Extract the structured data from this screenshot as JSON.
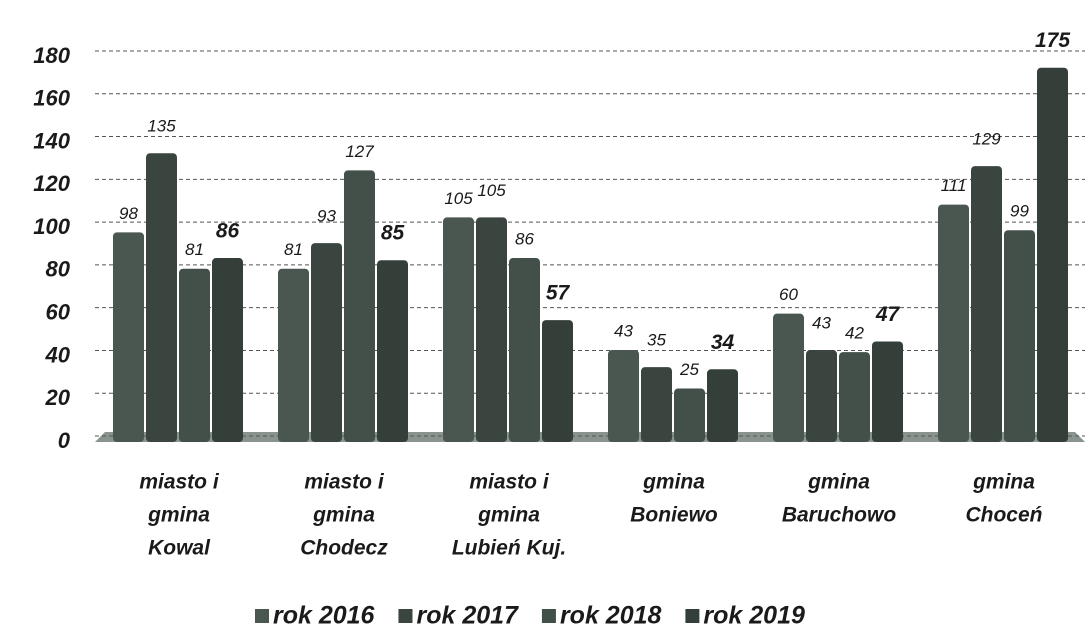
{
  "chart_data": {
    "type": "bar",
    "categories": [
      [
        "miasto  i",
        "gmina",
        "Kowal"
      ],
      [
        "miasto i",
        "gmina",
        "Chodecz"
      ],
      [
        "miasto i",
        "gmina",
        "Lubień Kuj."
      ],
      [
        "gmina",
        "Boniewo"
      ],
      [
        "gmina",
        "Baruchowo"
      ],
      [
        "gmina",
        "Choceń"
      ]
    ],
    "series": [
      {
        "name": "rok 2016",
        "color": "#4a5650",
        "values": [
          98,
          81,
          105,
          43,
          60,
          111
        ]
      },
      {
        "name": "rok 2017",
        "color": "#3a4540",
        "values": [
          135,
          93,
          105,
          35,
          43,
          129
        ]
      },
      {
        "name": "rok 2018",
        "color": "#434f49",
        "values": [
          81,
          127,
          86,
          25,
          42,
          99
        ]
      },
      {
        "name": "rok 2019",
        "color": "#353f3a",
        "values": [
          86,
          85,
          57,
          34,
          47,
          175
        ]
      }
    ],
    "ylim": [
      0,
      180
    ],
    "yticks": [
      0,
      20,
      40,
      60,
      80,
      100,
      120,
      140,
      160,
      180
    ],
    "grid": true
  }
}
